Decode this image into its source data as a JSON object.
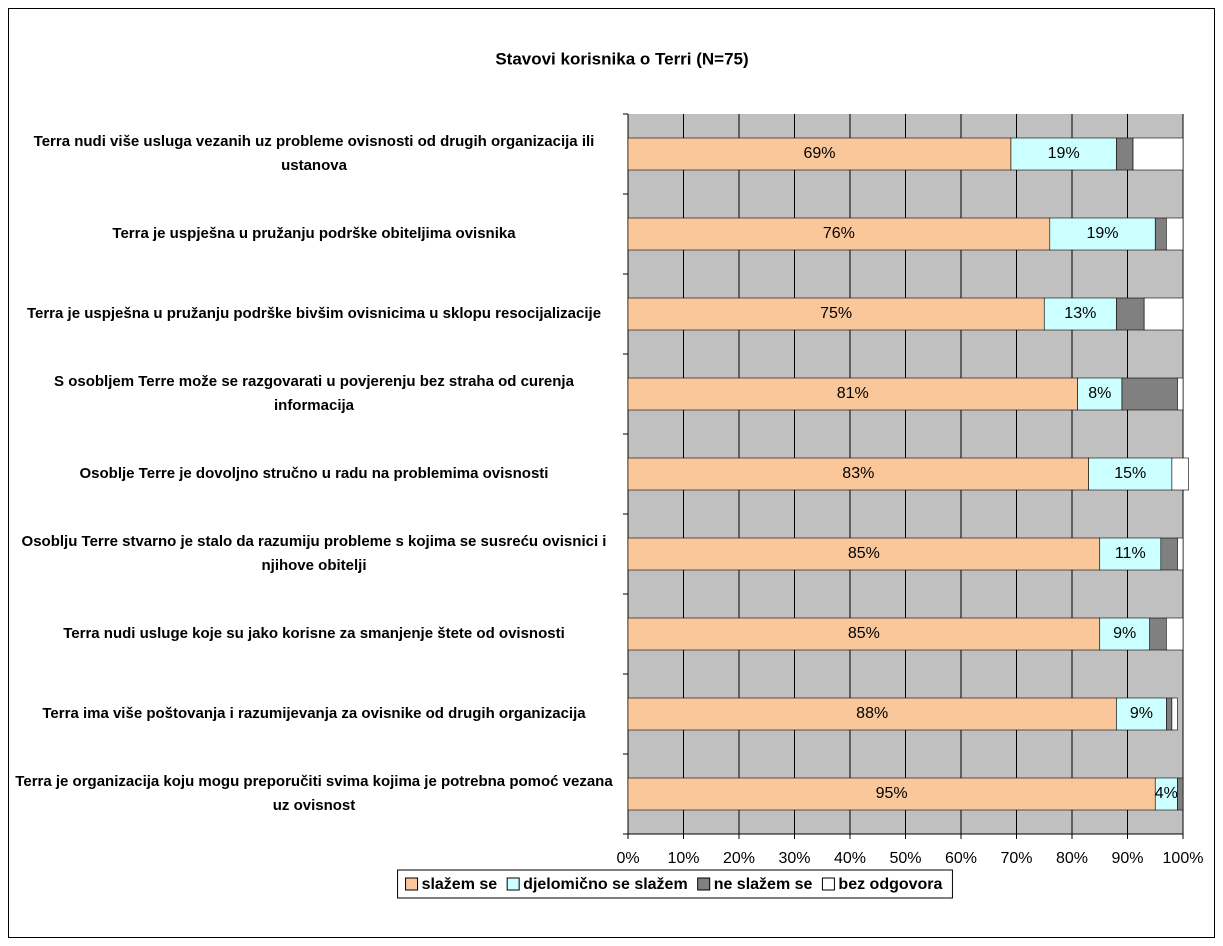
{
  "chart_data": {
    "type": "stacked-bar-horizontal",
    "title": "Stavovi korisnika o Terri (N=75)",
    "categories": [
      "Terra nudi više usluga vezanih uz probleme ovisnosti od drugih organizacija ili ustanova",
      "Terra je uspješna u pružanju podrške obiteljima ovisnika",
      "Terra je uspješna u pružanju podrške bivšim ovisnicima u sklopu resocijalizacije",
      "S osobljem Terre može se razgovarati u povjerenju bez straha od curenja informacija",
      "Osoblje Terre je dovoljno stručno u radu na problemima ovisnosti",
      "Osoblju Terre stvarno je  stalo da razumiju probleme s kojima se susreću  ovisnici i njihove obitelji",
      "Terra nudi usluge koje su jako korisne za smanjenje štete od ovisnosti",
      "Terra ima više poštovanja i razumijevanja za ovisnike od drugih organizacija",
      "Terra je organizacija koju mogu preporučiti svima kojima je potrebna pomoć vezana uz ovisnost"
    ],
    "series": [
      {
        "name": "slažem se",
        "color": "#fac79b",
        "values": [
          69,
          76,
          75,
          81,
          83,
          85,
          85,
          88,
          95
        ],
        "value_labels": [
          "69%",
          "76%",
          "75%",
          "81%",
          "83%",
          "85%",
          "85%",
          "88%",
          "95%"
        ]
      },
      {
        "name": "djelomično se slažem",
        "color": "#ccffff",
        "values": [
          19,
          19,
          13,
          8,
          15,
          11,
          9,
          9,
          4
        ],
        "value_labels": [
          "19%",
          "19%",
          "13%",
          "8%",
          "15%",
          "11%",
          "9%",
          "9%",
          "4%"
        ]
      },
      {
        "name": "ne slažem se",
        "color": "#808080",
        "values": [
          3,
          2,
          5,
          10,
          0,
          3,
          3,
          1,
          1
        ]
      },
      {
        "name": "bez odgovora",
        "color": "#ffffff",
        "values": [
          9,
          3,
          7,
          1,
          3,
          1,
          3,
          1,
          0
        ]
      }
    ],
    "xlim": [
      0,
      100
    ],
    "xticks": [
      {
        "value": 0,
        "label": "0%"
      },
      {
        "value": 10,
        "label": "10%"
      },
      {
        "value": 20,
        "label": "20%"
      },
      {
        "value": 30,
        "label": "30%"
      },
      {
        "value": 40,
        "label": "40%"
      },
      {
        "value": 50,
        "label": "50%"
      },
      {
        "value": 60,
        "label": "60%"
      },
      {
        "value": 70,
        "label": "70%"
      },
      {
        "value": 80,
        "label": "80%"
      },
      {
        "value": 90,
        "label": "90%"
      },
      {
        "value": 100,
        "label": "100%"
      }
    ],
    "grid": true,
    "legend": "bottom"
  }
}
